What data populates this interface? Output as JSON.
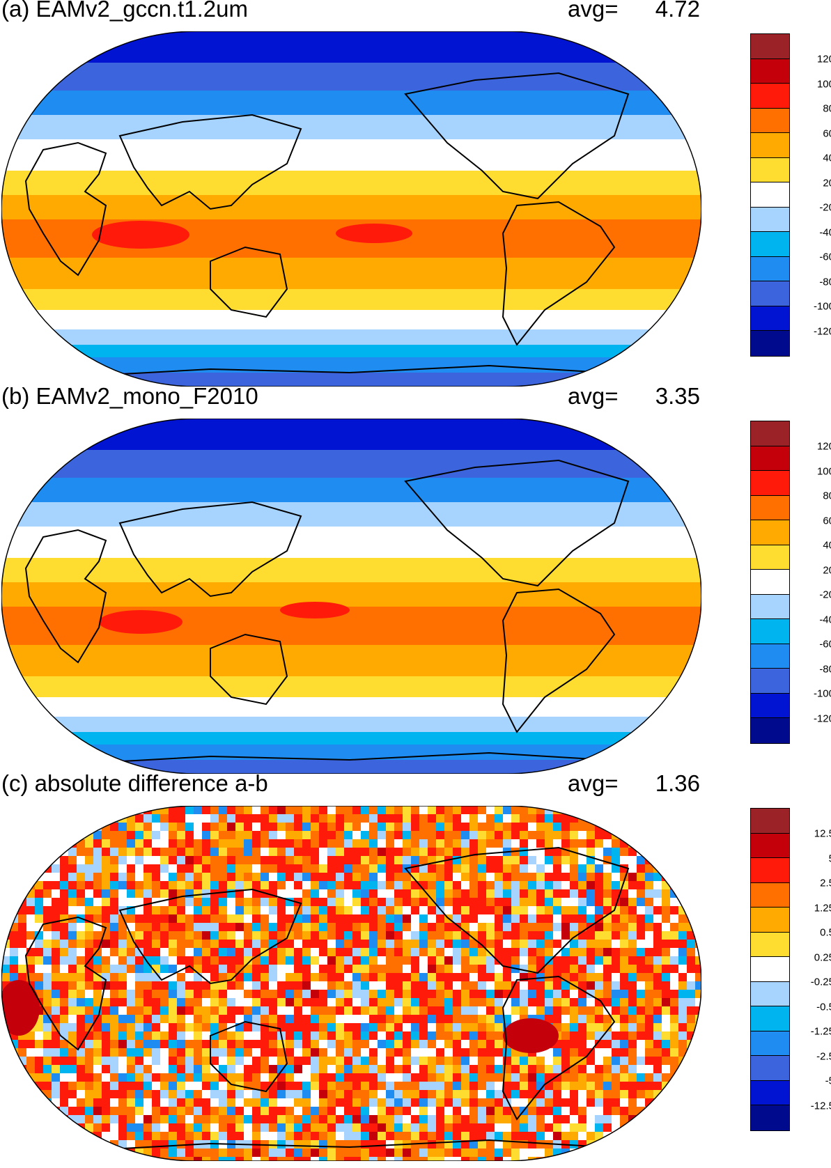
{
  "panels": [
    {
      "title": "(a) EAMv2_gccn.t1.2um",
      "avg_label": "avg=",
      "avg_value": "4.72",
      "colorbar": {
        "colors": [
          "#9b2226",
          "#c4000a",
          "#ff1a0a",
          "#ff7000",
          "#ffaa00",
          "#ffdd30",
          "#ffffff",
          "#a7d3ff",
          "#00b4f0",
          "#1e8cf0",
          "#3c64dc",
          "#0014d2",
          "#000a8c"
        ],
        "labels": [
          "120",
          "100",
          "80",
          "60",
          "40",
          "20",
          "-20",
          "-40",
          "-60",
          "-80",
          "-100",
          "-120"
        ]
      }
    },
    {
      "title": "(b) EAMv2_mono_F2010",
      "avg_label": "avg=",
      "avg_value": "3.35",
      "colorbar": {
        "colors": [
          "#9b2226",
          "#c4000a",
          "#ff1a0a",
          "#ff7000",
          "#ffaa00",
          "#ffdd30",
          "#ffffff",
          "#a7d3ff",
          "#00b4f0",
          "#1e8cf0",
          "#3c64dc",
          "#0014d2",
          "#000a8c"
        ],
        "labels": [
          "120",
          "100",
          "80",
          "60",
          "40",
          "20",
          "-20",
          "-40",
          "-60",
          "-80",
          "-100",
          "-120"
        ]
      }
    },
    {
      "title": "(c) absolute difference a-b",
      "avg_label": "avg=",
      "avg_value": "1.36",
      "colorbar": {
        "colors": [
          "#9b2226",
          "#c4000a",
          "#ff1a0a",
          "#ff7000",
          "#ffaa00",
          "#ffdd30",
          "#ffffff",
          "#a7d3ff",
          "#00b4f0",
          "#1e8cf0",
          "#3c64dc",
          "#0014d2",
          "#000a8c"
        ],
        "labels": [
          "12.5",
          "5",
          "2.5",
          "1.25",
          "0.5",
          "0.25",
          "-0.25",
          "-0.5",
          "-1.25",
          "-2.5",
          "-5",
          "-12.5"
        ]
      }
    }
  ]
}
